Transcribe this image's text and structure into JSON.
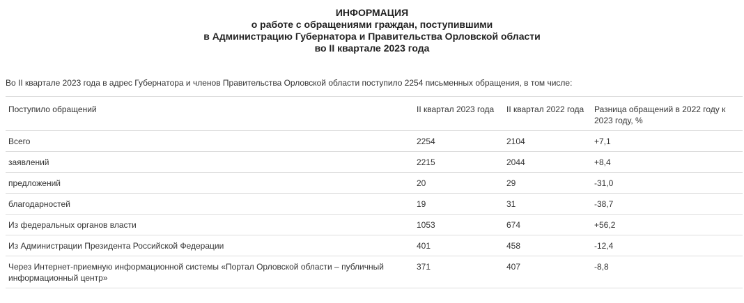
{
  "header": {
    "lines": [
      "ИНФОРМАЦИЯ",
      "о работе с обращениями граждан, поступившими",
      "в Администрацию Губернатора и Правительства Орловской области",
      "во II квартале 2023 года"
    ]
  },
  "intro": "Во II квартале 2023 года в адрес Губернатора и членов Правительства Орловской области поступило 2254 письменных обращения, в том числе:",
  "table": {
    "columns": [
      "Поступило обращений",
      "II квартал 2023 года",
      "II квартал 2022 года",
      "Разница обращений в 2022 году к 2023 году, %"
    ],
    "rows": [
      [
        "Всего",
        "2254",
        "2104",
        "+7,1"
      ],
      [
        "заявлений",
        "2215",
        "2044",
        "+8,4"
      ],
      [
        "предложений",
        "20",
        "29",
        "-31,0"
      ],
      [
        "благодарностей",
        "19",
        "31",
        "-38,7"
      ],
      [
        "Из федеральных органов власти",
        "1053",
        "674",
        "+56,2"
      ],
      [
        "Из Администрации Президента Российской Федерации",
        "401",
        "458",
        "-12,4"
      ],
      [
        "Через Интернет-приемную информационной системы «Портал Орловской области – публичный информационный центр»",
        "371",
        "407",
        "-8,8"
      ]
    ]
  }
}
